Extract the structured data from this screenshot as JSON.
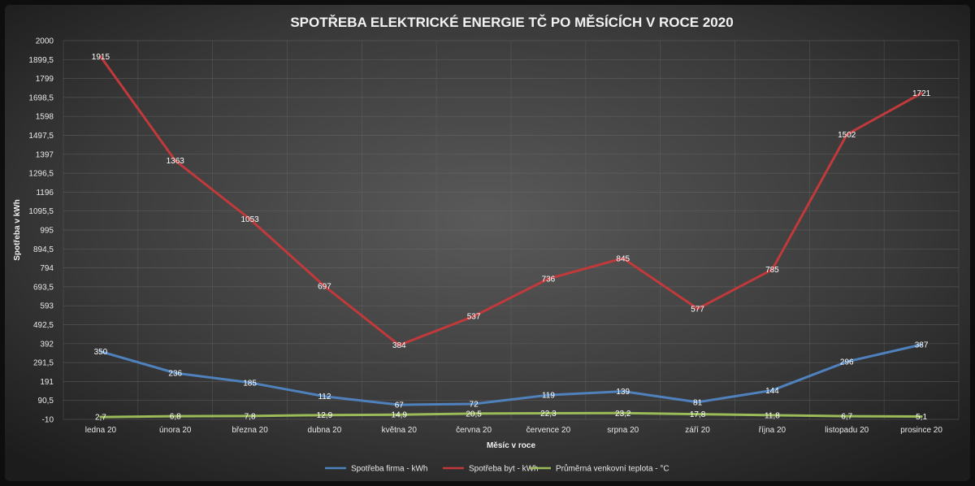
{
  "chart_data": {
    "type": "line",
    "title": "SPOTŘEBA ELEKTRICKÉ ENERGIE TČ PO MĚSÍCÍCH V ROCE 2020",
    "xlabel": "Měsíc v roce",
    "ylabel": "Spotřeba v kWh",
    "ylim": [
      -10,
      2000
    ],
    "y_ticks": [
      "-10",
      "90,5",
      "191",
      "291,5",
      "392",
      "492,5",
      "593",
      "693,5",
      "794",
      "894,5",
      "995",
      "1095,5",
      "1196",
      "1296,5",
      "1397",
      "1497,5",
      "1598",
      "1698,5",
      "1799",
      "1899,5",
      "2000"
    ],
    "y_tick_values": [
      -10,
      90.5,
      191,
      291.5,
      392,
      492.5,
      593,
      693.5,
      794,
      894.5,
      995,
      1095.5,
      1196,
      1296.5,
      1397,
      1497.5,
      1598,
      1698.5,
      1799,
      1899.5,
      2000
    ],
    "categories": [
      "ledna 20",
      "února 20",
      "března 20",
      "dubna 20",
      "května 20",
      "června 20",
      "července 20",
      "srpna 20",
      "září 20",
      "října 20",
      "listopadu 20",
      "prosince 20"
    ],
    "grid": true,
    "legend_position": "bottom",
    "series": [
      {
        "name": "Spotřeba firma - kWh",
        "color": "#4f81bd",
        "values": [
          350,
          236,
          185,
          112,
          67,
          72,
          119,
          139,
          81,
          144,
          296,
          387
        ],
        "labels": [
          "350",
          "236",
          "185",
          "112",
          "67",
          "72",
          "119",
          "139",
          "81",
          "144",
          "296",
          "387"
        ]
      },
      {
        "name": "Spotřeba byt - kWh",
        "color": "#c0393b",
        "values": [
          1915,
          1363,
          1053,
          697,
          384,
          537,
          736,
          845,
          577,
          785,
          1502,
          1721
        ],
        "labels": [
          "1915",
          "1363",
          "1053",
          "697",
          "384",
          "537",
          "736",
          "845",
          "577",
          "785",
          "1502",
          "1721"
        ]
      },
      {
        "name": "Průměrná venkovní teplota - °C",
        "color": "#9bbb59",
        "values": [
          2.7,
          6.8,
          7.8,
          12.9,
          14.9,
          20.5,
          22.3,
          23.2,
          17.8,
          11.8,
          6.7,
          5.1
        ],
        "labels": [
          "2,7",
          "6,8",
          "7,8",
          "12,9",
          "14,9",
          "20,5",
          "22,3",
          "23,2",
          "17,8",
          "11,8",
          "6,7",
          "5,1"
        ]
      }
    ]
  }
}
